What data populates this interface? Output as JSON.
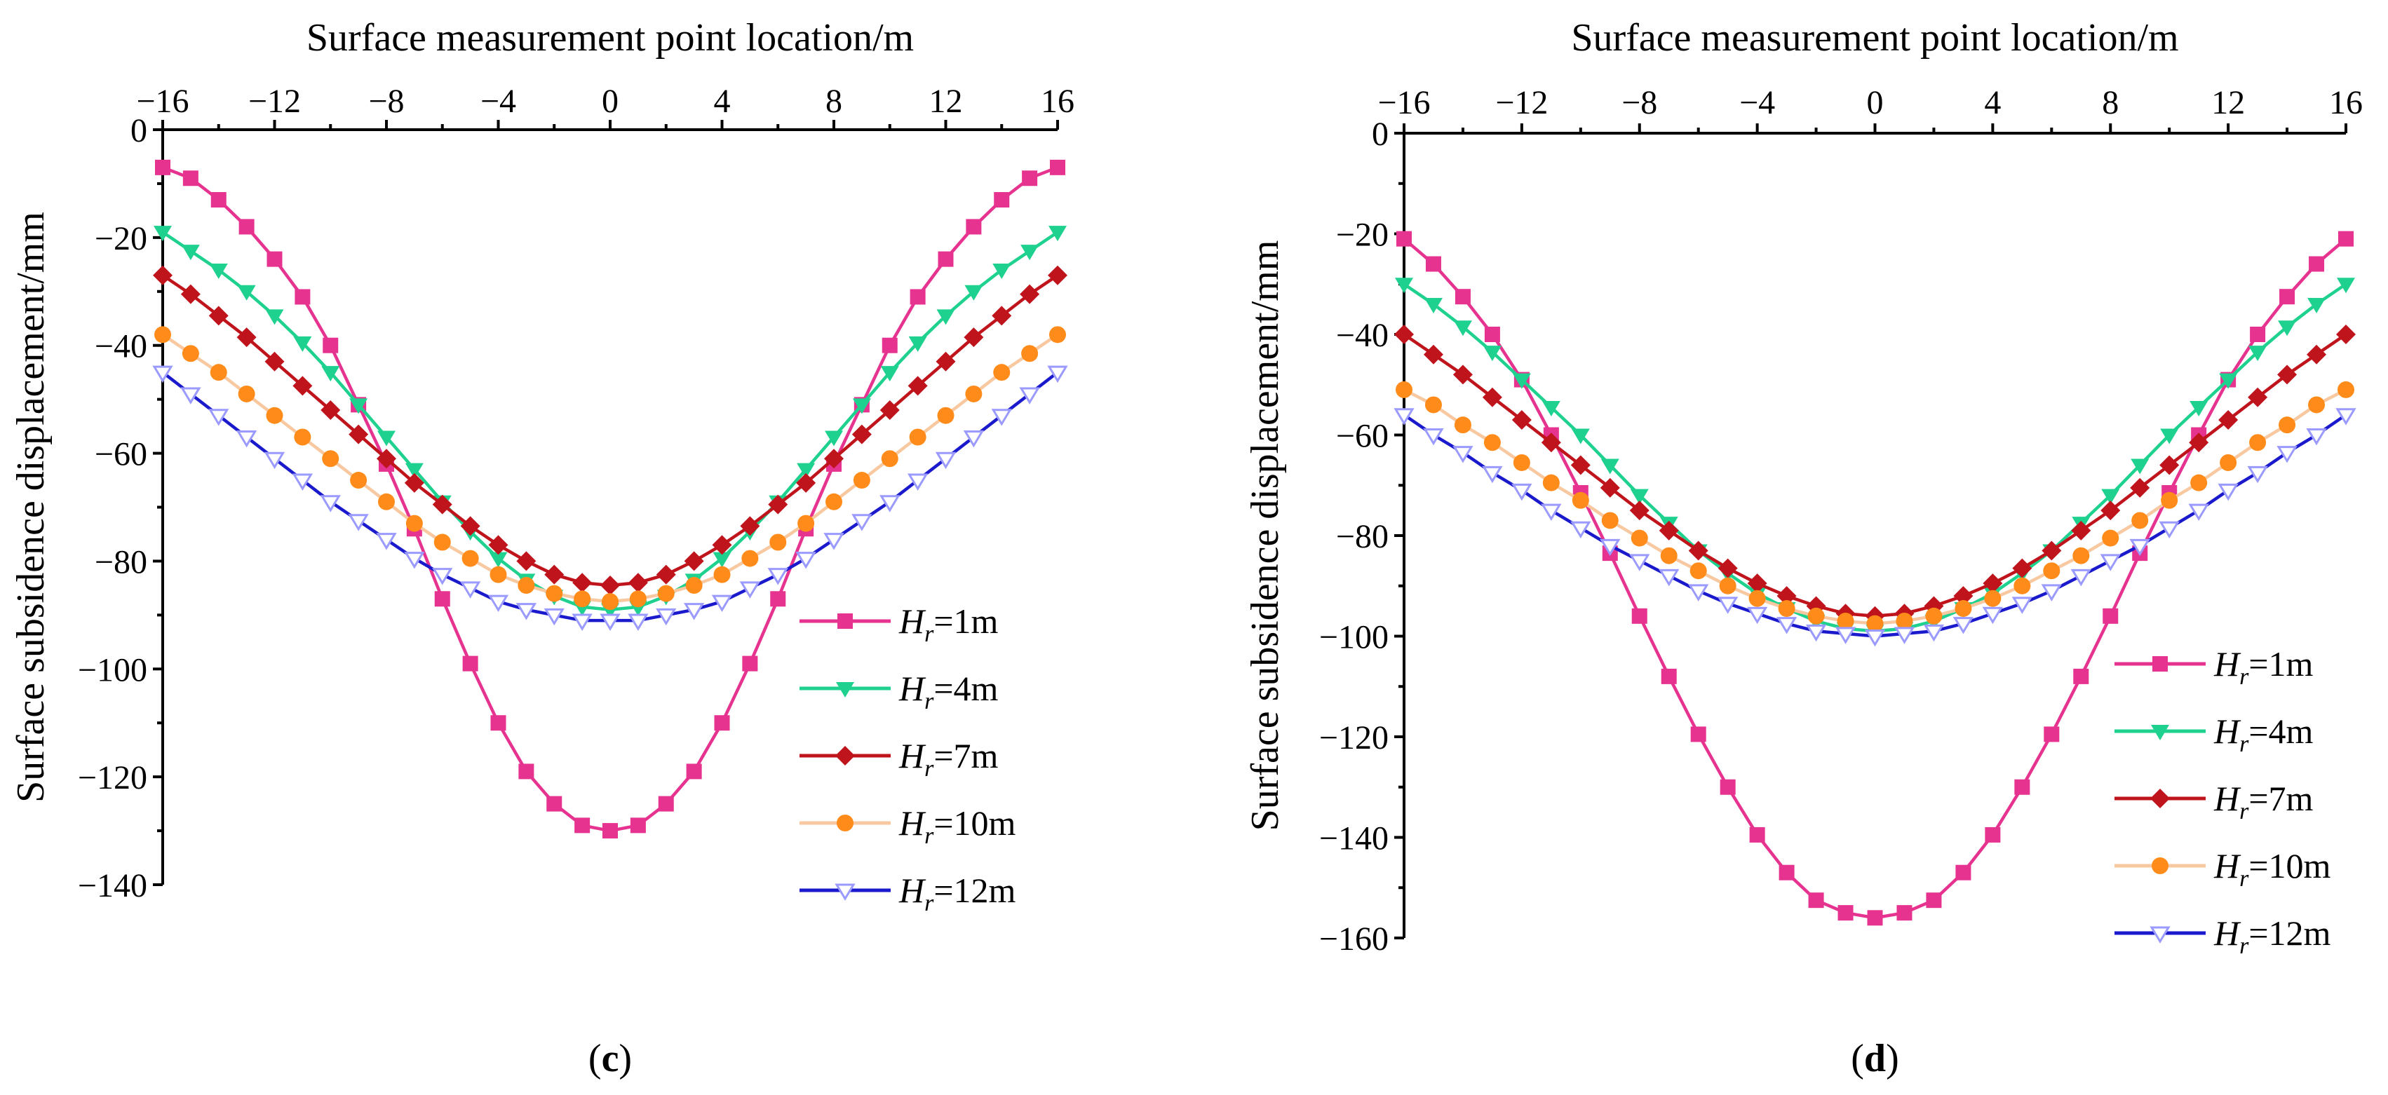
{
  "chart_data": [
    {
      "type": "line",
      "panel_label": "c",
      "xlabel": "Surface measurement point location/m",
      "ylabel": "Surface subsidence displacement/mm",
      "xlim": [
        -16,
        16
      ],
      "ylim": [
        -140,
        0
      ],
      "xticks": [
        -16,
        -12,
        -8,
        -4,
        0,
        4,
        8,
        12,
        16
      ],
      "yticks": [
        0,
        -20,
        -40,
        -60,
        -80,
        -100,
        -120,
        -140
      ],
      "x_axis_position": "top",
      "legend_position": "bottom-right",
      "x": [
        -16,
        -15,
        -14,
        -13,
        -12,
        -11,
        -10,
        -9,
        -8,
        -7,
        -6,
        -5,
        -4,
        -3,
        -2,
        -1,
        0,
        1,
        2,
        3,
        4,
        5,
        6,
        7,
        8,
        9,
        10,
        11,
        12,
        13,
        14,
        15,
        16
      ],
      "series": [
        {
          "name": "Hr=1m",
          "var": "H",
          "sub": "r",
          "value_text": "=1m",
          "color": "#e6338f",
          "marker": "square",
          "values": [
            -7,
            -9,
            -13,
            -18,
            -24,
            -31,
            -40,
            -51,
            -62,
            -74,
            -87,
            -99,
            -110,
            -119,
            -125,
            -129,
            -130,
            -129,
            -125,
            -119,
            -110,
            -99,
            -87,
            -74,
            -62,
            -51,
            -40,
            -31,
            -24,
            -18,
            -13,
            -9,
            -7
          ]
        },
        {
          "name": "Hr=4m",
          "var": "H",
          "sub": "r",
          "value_text": "=4m",
          "color": "#1fd18f",
          "marker": "triangle-down",
          "values": [
            -19,
            -22.5,
            -26,
            -30,
            -34.5,
            -39.5,
            -45,
            -51,
            -57,
            -63,
            -69,
            -74.5,
            -79.5,
            -83.5,
            -86.5,
            -88.5,
            -89,
            -88.5,
            -86.5,
            -83.5,
            -79.5,
            -74.5,
            -69,
            -63,
            -57,
            -51,
            -45,
            -39.5,
            -34.5,
            -30,
            -26,
            -22.5,
            -19
          ]
        },
        {
          "name": "Hr=7m",
          "var": "H",
          "sub": "r",
          "value_text": "=7m",
          "color": "#c0141c",
          "marker": "diamond",
          "values": [
            -27,
            -30.5,
            -34.5,
            -38.5,
            -43,
            -47.5,
            -52,
            -56.5,
            -61,
            -65.5,
            -69.5,
            -73.5,
            -77,
            -80,
            -82.5,
            -84,
            -84.5,
            -84,
            -82.5,
            -80,
            -77,
            -73.5,
            -69.5,
            -65.5,
            -61,
            -56.5,
            -52,
            -47.5,
            -43,
            -38.5,
            -34.5,
            -30.5,
            -27
          ]
        },
        {
          "name": "Hr=10m",
          "var": "H",
          "sub": "r",
          "value_text": "=10m",
          "color": "#ff8c1a",
          "line_color": "#f8c8a0",
          "marker": "circle",
          "values": [
            -38,
            -41.5,
            -45,
            -49,
            -53,
            -57,
            -61,
            -65,
            -69,
            -73,
            -76.5,
            -79.5,
            -82.5,
            -84.5,
            -86,
            -87,
            -87.5,
            -87,
            -86,
            -84.5,
            -82.5,
            -79.5,
            -76.5,
            -73,
            -69,
            -65,
            -61,
            -57,
            -53,
            -49,
            -45,
            -41.5,
            -38
          ]
        },
        {
          "name": "Hr=12m",
          "var": "H",
          "sub": "r",
          "value_text": "=12m",
          "color": "#1a1aff",
          "line_color": "#1a1acc",
          "marker": "triangle-down-open",
          "values": [
            -45,
            -49,
            -53,
            -57,
            -61,
            -65,
            -69,
            -72.5,
            -76,
            -79.5,
            -82.5,
            -85,
            -87.5,
            -89,
            -90,
            -91,
            -91,
            -91,
            -90,
            -89,
            -87.5,
            -85,
            -82.5,
            -79.5,
            -76,
            -72.5,
            -69,
            -65,
            -61,
            -57,
            -53,
            -49,
            -45
          ]
        }
      ]
    },
    {
      "type": "line",
      "panel_label": "d",
      "xlabel": "Surface measurement point location/m",
      "ylabel": "Surface subsidence displacement/mm",
      "xlim": [
        -16,
        16
      ],
      "ylim": [
        -160,
        0
      ],
      "xticks": [
        -16,
        -12,
        -8,
        -4,
        0,
        4,
        8,
        12,
        16
      ],
      "yticks": [
        0,
        -20,
        -40,
        -60,
        -80,
        -100,
        -120,
        -140,
        -160
      ],
      "x_axis_position": "top",
      "legend_position": "bottom-right",
      "x": [
        -16,
        -15,
        -14,
        -13,
        -12,
        -11,
        -10,
        -9,
        -8,
        -7,
        -6,
        -5,
        -4,
        -3,
        -2,
        -1,
        0,
        1,
        2,
        3,
        4,
        5,
        6,
        7,
        8,
        9,
        10,
        11,
        12,
        13,
        14,
        15,
        16
      ],
      "series": [
        {
          "name": "Hr=1m",
          "var": "H",
          "sub": "r",
          "value_text": "=1m",
          "color": "#e6338f",
          "marker": "square",
          "values": [
            -21,
            -26,
            -32.5,
            -40,
            -49,
            -60,
            -71.5,
            -83.5,
            -96,
            -108,
            -119.5,
            -130,
            -139.5,
            -147,
            -152.5,
            -155,
            -156,
            -155,
            -152.5,
            -147,
            -139.5,
            -130,
            -119.5,
            -108,
            -96,
            -83.5,
            -71.5,
            -60,
            -49,
            -40,
            -32.5,
            -26,
            -21
          ]
        },
        {
          "name": "Hr=4m",
          "var": "H",
          "sub": "r",
          "value_text": "=4m",
          "color": "#1fd18f",
          "marker": "triangle-down",
          "values": [
            -30,
            -34,
            -38.5,
            -43.5,
            -49,
            -54.5,
            -60,
            -66,
            -72,
            -77.5,
            -83,
            -87.5,
            -91.5,
            -94.5,
            -97,
            -98.5,
            -99,
            -98.5,
            -97,
            -94.5,
            -91.5,
            -87.5,
            -83,
            -77.5,
            -72,
            -66,
            -60,
            -54.5,
            -49,
            -43.5,
            -38.5,
            -34,
            -30
          ]
        },
        {
          "name": "Hr=7m",
          "var": "H",
          "sub": "r",
          "value_text": "=7m",
          "color": "#c0141c",
          "marker": "diamond",
          "values": [
            -40,
            -44,
            -48,
            -52.5,
            -57,
            -61.5,
            -66,
            -70.5,
            -75,
            -79,
            -83,
            -86.5,
            -89.5,
            -92,
            -94,
            -95.5,
            -96,
            -95.5,
            -94,
            -92,
            -89.5,
            -86.5,
            -83,
            -79,
            -75,
            -70.5,
            -66,
            -61.5,
            -57,
            -52.5,
            -48,
            -44,
            -40
          ]
        },
        {
          "name": "Hr=10m",
          "var": "H",
          "sub": "r",
          "value_text": "=10m",
          "color": "#ff8c1a",
          "line_color": "#f8c8a0",
          "marker": "circle",
          "values": [
            -51,
            -54,
            -58,
            -61.5,
            -65.5,
            -69.5,
            -73,
            -77,
            -80.5,
            -84,
            -87,
            -90,
            -92.5,
            -94.5,
            -96,
            -97,
            -97.5,
            -97,
            -96,
            -94.5,
            -92.5,
            -90,
            -87,
            -84,
            -80.5,
            -77,
            -73,
            -69.5,
            -65.5,
            -61.5,
            -58,
            -54,
            -51
          ]
        },
        {
          "name": "Hr=12m",
          "var": "H",
          "sub": "r",
          "value_text": "=12m",
          "color": "#1a1aff",
          "line_color": "#1a1acc",
          "marker": "triangle-down-open",
          "values": [
            -56,
            -60,
            -63.5,
            -67.5,
            -71,
            -75,
            -78.5,
            -82,
            -85,
            -88,
            -91,
            -93.5,
            -95.5,
            -97.5,
            -99,
            -99.5,
            -100,
            -99.5,
            -99,
            -97.5,
            -95.5,
            -93.5,
            -91,
            -88,
            -85,
            -82,
            -78.5,
            -75,
            -71,
            -67.5,
            -63.5,
            -60,
            -56
          ]
        }
      ]
    }
  ]
}
